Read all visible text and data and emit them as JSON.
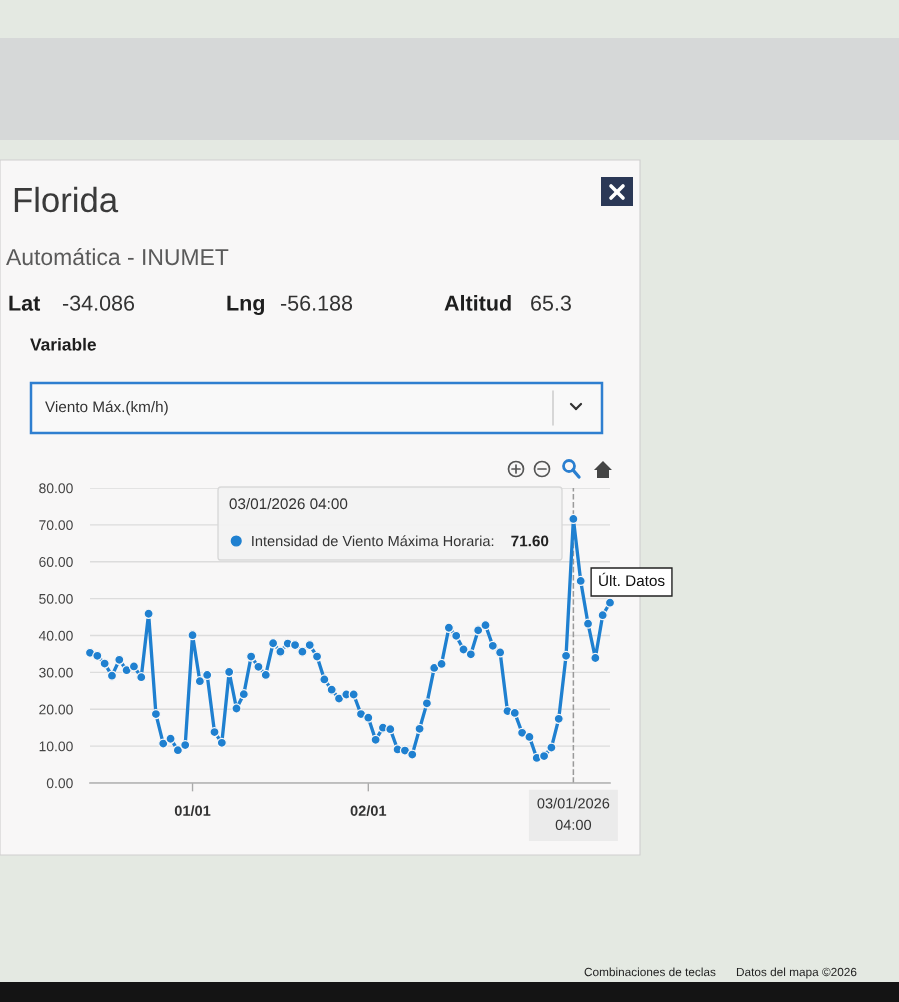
{
  "chart_data": {
    "type": "line",
    "title": "Florida",
    "subtitle": "Automática - INUMET",
    "annotations": [
      "Lat",
      "-34.086",
      "Lng",
      "-56.188",
      "Altitud",
      "65.3",
      "Variable",
      "Viento Máx.(km/h)",
      "Últ. Datos",
      "Combinaciones de teclas",
      "Datos del mapa ©2026"
    ],
    "legend_title": "03/01/2026 04:00",
    "x": [
      "2025-12-31T10:00",
      "2025-12-31T11:00",
      "2025-12-31T12:00",
      "2025-12-31T13:00",
      "2025-12-31T14:00",
      "2025-12-31T15:00",
      "2025-12-31T16:00",
      "2025-12-31T17:00",
      "2025-12-31T18:00",
      "2025-12-31T19:00",
      "2025-12-31T20:00",
      "2025-12-31T21:00",
      "2025-12-31T22:00",
      "2025-12-31T23:00",
      "2026-01-01T00:00",
      "2026-01-01T01:00",
      "2026-01-01T02:00",
      "2026-01-01T03:00",
      "2026-01-01T04:00",
      "2026-01-01T05:00",
      "2026-01-01T06:00",
      "2026-01-01T07:00",
      "2026-01-01T08:00",
      "2026-01-01T09:00",
      "2026-01-01T10:00",
      "2026-01-01T11:00",
      "2026-01-01T12:00",
      "2026-01-01T13:00",
      "2026-01-01T14:00",
      "2026-01-01T15:00",
      "2026-01-01T16:00",
      "2026-01-01T17:00",
      "2026-01-01T18:00",
      "2026-01-01T19:00",
      "2026-01-01T20:00",
      "2026-01-01T21:00",
      "2026-01-01T22:00",
      "2026-01-01T23:00",
      "2026-01-02T00:00",
      "2026-01-02T01:00",
      "2026-01-02T02:00",
      "2026-01-02T03:00",
      "2026-01-02T04:00",
      "2026-01-02T05:00",
      "2026-01-02T06:00",
      "2026-01-02T07:00",
      "2026-01-02T08:00",
      "2026-01-02T09:00",
      "2026-01-02T10:00",
      "2026-01-02T11:00",
      "2026-01-02T12:00",
      "2026-01-02T13:00",
      "2026-01-02T14:00",
      "2026-01-02T15:00",
      "2026-01-02T16:00",
      "2026-01-02T17:00",
      "2026-01-02T18:00",
      "2026-01-02T19:00",
      "2026-01-02T20:00",
      "2026-01-02T21:00",
      "2026-01-02T22:00",
      "2026-01-02T23:00",
      "2026-01-03T00:00",
      "2026-01-03T01:00",
      "2026-01-03T02:00",
      "2026-01-03T03:00",
      "2026-01-03T04:00",
      "2026-01-03T05:00",
      "2026-01-03T06:00",
      "2026-01-03T07:00",
      "2026-01-03T08:00",
      "2026-01-03T09:00"
    ],
    "series": [
      {
        "name": "Intensidad de Viento Máxima Horaria:",
        "color": "#1f80d0",
        "values": [
          35.3,
          34.5,
          32.4,
          29.1,
          33.4,
          30.6,
          31.6,
          28.7,
          45.9,
          18.7,
          10.7,
          12.0,
          8.9,
          10.3,
          40.1,
          27.6,
          29.3,
          13.8,
          10.9,
          30.1,
          20.2,
          24.1,
          34.3,
          31.5,
          29.3,
          37.9,
          35.6,
          37.8,
          37.4,
          35.6,
          37.4,
          34.3,
          28.1,
          25.3,
          22.9,
          24.0,
          24.0,
          18.7,
          17.7,
          11.7,
          15.0,
          14.6,
          9.1,
          8.8,
          7.7,
          14.7,
          21.6,
          31.2,
          32.3,
          42.1,
          39.9,
          36.2,
          34.9,
          41.4,
          42.8,
          37.2,
          35.4,
          19.5,
          19.0,
          13.6,
          12.5,
          6.8,
          7.3,
          9.6,
          17.4,
          34.5,
          71.6,
          54.8,
          43.2,
          33.9,
          45.5,
          48.9
        ],
        "value_labels": [
          null,
          null,
          null,
          null,
          null,
          null,
          null,
          null,
          null,
          null,
          null,
          null,
          null,
          null,
          null,
          null,
          null,
          null,
          null,
          null,
          null,
          null,
          null,
          null,
          null,
          null,
          null,
          null,
          null,
          null,
          null,
          null,
          null,
          null,
          null,
          null,
          null,
          null,
          null,
          null,
          null,
          null,
          null,
          null,
          null,
          null,
          null,
          null,
          null,
          null,
          null,
          null,
          null,
          null,
          null,
          null,
          null,
          null,
          null,
          null,
          null,
          null,
          null,
          null,
          null,
          null,
          "71.60",
          null,
          null,
          null,
          null,
          null
        ]
      }
    ],
    "xlim": [
      "2025-12-31T10:00",
      "2026-01-03T09:00"
    ],
    "xticks": [
      {
        "value": "2026-01-01",
        "label": "01/01"
      },
      {
        "value": "2026-01-02",
        "label": "02/01"
      }
    ],
    "ylim": [
      0,
      80
    ],
    "yticks": [
      {
        "value": 0,
        "label": "0.00"
      },
      {
        "value": 10,
        "label": "10.00"
      },
      {
        "value": 20,
        "label": "20.00"
      },
      {
        "value": 30,
        "label": "30.00"
      },
      {
        "value": 40,
        "label": "40.00"
      },
      {
        "value": 50,
        "label": "50.00"
      },
      {
        "value": 60,
        "label": "60.00"
      },
      {
        "value": 70,
        "label": "70.00"
      },
      {
        "value": 80,
        "label": "80.00"
      }
    ],
    "ref_lines": [
      {
        "axis": "x",
        "value": "2026-01-03T04:00",
        "label": "03/01/2026\n04:00",
        "color": "#9a9a9a",
        "line_style": "dashed"
      }
    ],
    "grid": "y",
    "legend": "top",
    "marker": "circle",
    "line_style": "solid"
  }
}
